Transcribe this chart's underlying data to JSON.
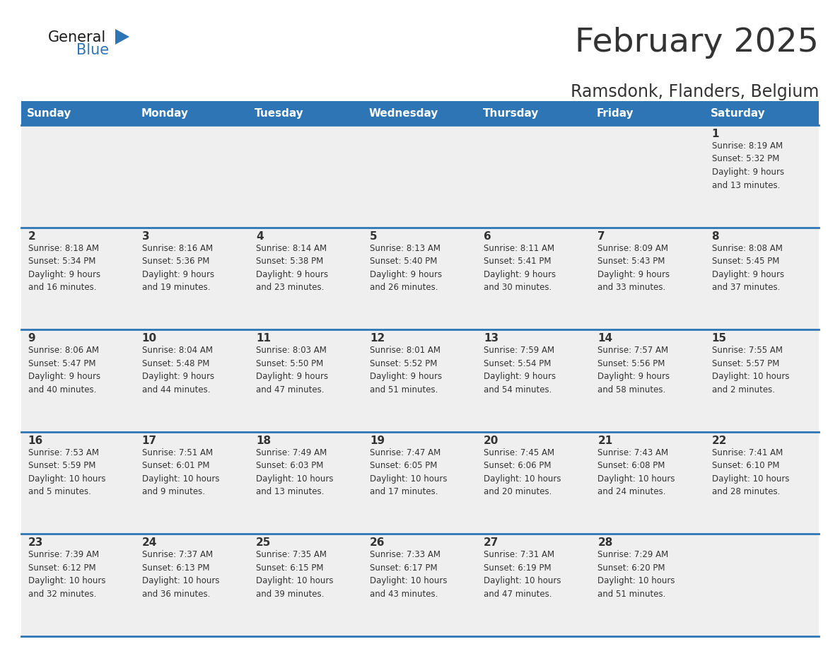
{
  "title": "February 2025",
  "subtitle": "Ramsdonk, Flanders, Belgium",
  "header_color": "#2E75B6",
  "header_text_color": "#FFFFFF",
  "cell_bg_color": "#EFEFEF",
  "border_color": "#2E75B6",
  "text_color": "#333333",
  "days_of_week": [
    "Sunday",
    "Monday",
    "Tuesday",
    "Wednesday",
    "Thursday",
    "Friday",
    "Saturday"
  ],
  "calendar": [
    [
      {
        "day": "",
        "info": ""
      },
      {
        "day": "",
        "info": ""
      },
      {
        "day": "",
        "info": ""
      },
      {
        "day": "",
        "info": ""
      },
      {
        "day": "",
        "info": ""
      },
      {
        "day": "",
        "info": ""
      },
      {
        "day": "1",
        "info": "Sunrise: 8:19 AM\nSunset: 5:32 PM\nDaylight: 9 hours\nand 13 minutes."
      }
    ],
    [
      {
        "day": "2",
        "info": "Sunrise: 8:18 AM\nSunset: 5:34 PM\nDaylight: 9 hours\nand 16 minutes."
      },
      {
        "day": "3",
        "info": "Sunrise: 8:16 AM\nSunset: 5:36 PM\nDaylight: 9 hours\nand 19 minutes."
      },
      {
        "day": "4",
        "info": "Sunrise: 8:14 AM\nSunset: 5:38 PM\nDaylight: 9 hours\nand 23 minutes."
      },
      {
        "day": "5",
        "info": "Sunrise: 8:13 AM\nSunset: 5:40 PM\nDaylight: 9 hours\nand 26 minutes."
      },
      {
        "day": "6",
        "info": "Sunrise: 8:11 AM\nSunset: 5:41 PM\nDaylight: 9 hours\nand 30 minutes."
      },
      {
        "day": "7",
        "info": "Sunrise: 8:09 AM\nSunset: 5:43 PM\nDaylight: 9 hours\nand 33 minutes."
      },
      {
        "day": "8",
        "info": "Sunrise: 8:08 AM\nSunset: 5:45 PM\nDaylight: 9 hours\nand 37 minutes."
      }
    ],
    [
      {
        "day": "9",
        "info": "Sunrise: 8:06 AM\nSunset: 5:47 PM\nDaylight: 9 hours\nand 40 minutes."
      },
      {
        "day": "10",
        "info": "Sunrise: 8:04 AM\nSunset: 5:48 PM\nDaylight: 9 hours\nand 44 minutes."
      },
      {
        "day": "11",
        "info": "Sunrise: 8:03 AM\nSunset: 5:50 PM\nDaylight: 9 hours\nand 47 minutes."
      },
      {
        "day": "12",
        "info": "Sunrise: 8:01 AM\nSunset: 5:52 PM\nDaylight: 9 hours\nand 51 minutes."
      },
      {
        "day": "13",
        "info": "Sunrise: 7:59 AM\nSunset: 5:54 PM\nDaylight: 9 hours\nand 54 minutes."
      },
      {
        "day": "14",
        "info": "Sunrise: 7:57 AM\nSunset: 5:56 PM\nDaylight: 9 hours\nand 58 minutes."
      },
      {
        "day": "15",
        "info": "Sunrise: 7:55 AM\nSunset: 5:57 PM\nDaylight: 10 hours\nand 2 minutes."
      }
    ],
    [
      {
        "day": "16",
        "info": "Sunrise: 7:53 AM\nSunset: 5:59 PM\nDaylight: 10 hours\nand 5 minutes."
      },
      {
        "day": "17",
        "info": "Sunrise: 7:51 AM\nSunset: 6:01 PM\nDaylight: 10 hours\nand 9 minutes."
      },
      {
        "day": "18",
        "info": "Sunrise: 7:49 AM\nSunset: 6:03 PM\nDaylight: 10 hours\nand 13 minutes."
      },
      {
        "day": "19",
        "info": "Sunrise: 7:47 AM\nSunset: 6:05 PM\nDaylight: 10 hours\nand 17 minutes."
      },
      {
        "day": "20",
        "info": "Sunrise: 7:45 AM\nSunset: 6:06 PM\nDaylight: 10 hours\nand 20 minutes."
      },
      {
        "day": "21",
        "info": "Sunrise: 7:43 AM\nSunset: 6:08 PM\nDaylight: 10 hours\nand 24 minutes."
      },
      {
        "day": "22",
        "info": "Sunrise: 7:41 AM\nSunset: 6:10 PM\nDaylight: 10 hours\nand 28 minutes."
      }
    ],
    [
      {
        "day": "23",
        "info": "Sunrise: 7:39 AM\nSunset: 6:12 PM\nDaylight: 10 hours\nand 32 minutes."
      },
      {
        "day": "24",
        "info": "Sunrise: 7:37 AM\nSunset: 6:13 PM\nDaylight: 10 hours\nand 36 minutes."
      },
      {
        "day": "25",
        "info": "Sunrise: 7:35 AM\nSunset: 6:15 PM\nDaylight: 10 hours\nand 39 minutes."
      },
      {
        "day": "26",
        "info": "Sunrise: 7:33 AM\nSunset: 6:17 PM\nDaylight: 10 hours\nand 43 minutes."
      },
      {
        "day": "27",
        "info": "Sunrise: 7:31 AM\nSunset: 6:19 PM\nDaylight: 10 hours\nand 47 minutes."
      },
      {
        "day": "28",
        "info": "Sunrise: 7:29 AM\nSunset: 6:20 PM\nDaylight: 10 hours\nand 51 minutes."
      },
      {
        "day": "",
        "info": ""
      }
    ]
  ],
  "logo_general_color": "#1a1a1a",
  "logo_blue_color": "#2E75B6",
  "title_fontsize": 34,
  "subtitle_fontsize": 17,
  "header_fontsize": 11,
  "day_num_fontsize": 11,
  "info_fontsize": 8.5
}
